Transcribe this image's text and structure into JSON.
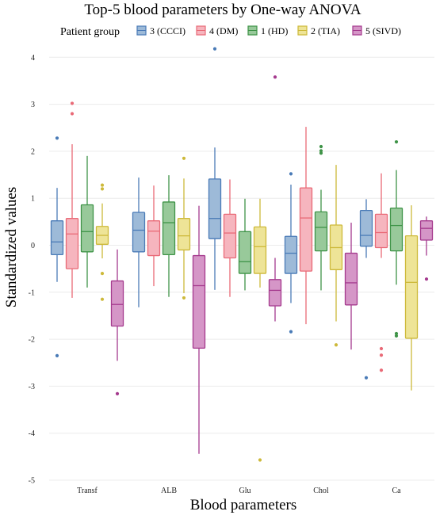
{
  "chart_data": {
    "type": "box",
    "title": "Top-5 blood parameters by One-way ANOVA",
    "xlabel": "Blood parameters",
    "ylabel": "Standardized values",
    "ylim": [
      -5,
      4.5
    ],
    "yticks": [
      -5,
      -4,
      -3,
      -2,
      -1,
      0,
      1,
      2,
      3,
      4
    ],
    "grid": true,
    "legend": {
      "title": "Patient group",
      "placement": "top"
    },
    "categories": [
      "Transf",
      "ALB",
      "Glu",
      "Chol",
      "Ca"
    ],
    "series": [
      {
        "name": "3 (CCCI)",
        "color": "#4a7bb7",
        "fill": "#9dbad8",
        "boxes": [
          {
            "lower": -0.78,
            "q1": -0.2,
            "median": 0.07,
            "q3": 0.52,
            "upper": 1.22,
            "outliers": [
              2.28,
              -2.35
            ]
          },
          {
            "lower": -1.32,
            "q1": -0.14,
            "median": 0.32,
            "q3": 0.7,
            "upper": 1.44,
            "outliers": []
          },
          {
            "lower": -0.95,
            "q1": 0.14,
            "median": 0.57,
            "q3": 1.41,
            "upper": 2.08,
            "outliers": [
              4.18
            ]
          },
          {
            "lower": -1.23,
            "q1": -0.6,
            "median": -0.17,
            "q3": 0.19,
            "upper": 1.29,
            "outliers": [
              1.52,
              -1.84
            ]
          },
          {
            "lower": -0.27,
            "q1": -0.02,
            "median": 0.21,
            "q3": 0.74,
            "upper": 0.98,
            "outliers": [
              -2.82
            ]
          }
        ]
      },
      {
        "name": "4 (DM)",
        "color": "#e96a77",
        "fill": "#f6b5be",
        "boxes": [
          {
            "lower": -1.12,
            "q1": -0.5,
            "median": 0.24,
            "q3": 0.57,
            "upper": 2.15,
            "outliers": [
              3.02,
              2.8
            ]
          },
          {
            "lower": -0.87,
            "q1": -0.22,
            "median": 0.3,
            "q3": 0.52,
            "upper": 1.27,
            "outliers": []
          },
          {
            "lower": -1.1,
            "q1": -0.27,
            "median": 0.26,
            "q3": 0.66,
            "upper": 1.4,
            "outliers": []
          },
          {
            "lower": -1.68,
            "q1": -0.55,
            "median": 0.58,
            "q3": 1.22,
            "upper": 2.52,
            "outliers": []
          },
          {
            "lower": -0.27,
            "q1": -0.05,
            "median": 0.27,
            "q3": 0.66,
            "upper": 1.53,
            "outliers": [
              -2.2,
              -2.34,
              -2.66
            ]
          }
        ]
      },
      {
        "name": "1 (HD)",
        "color": "#3e9347",
        "fill": "#98c99a",
        "boxes": [
          {
            "lower": -0.9,
            "q1": -0.14,
            "median": 0.29,
            "q3": 0.86,
            "upper": 1.9,
            "outliers": []
          },
          {
            "lower": -1.1,
            "q1": -0.2,
            "median": 0.48,
            "q3": 0.92,
            "upper": 1.49,
            "outliers": []
          },
          {
            "lower": -0.96,
            "q1": -0.6,
            "median": -0.35,
            "q3": 0.29,
            "upper": 0.99,
            "outliers": []
          },
          {
            "lower": -0.96,
            "q1": -0.12,
            "median": 0.38,
            "q3": 0.71,
            "upper": 1.18,
            "outliers": [
              2.1,
              2.01,
              1.96
            ]
          },
          {
            "lower": -0.84,
            "q1": -0.12,
            "median": 0.42,
            "q3": 0.79,
            "upper": 1.6,
            "outliers": [
              2.2,
              -1.88,
              -1.93
            ]
          }
        ]
      },
      {
        "name": "2 (TIA)",
        "color": "#cdb93a",
        "fill": "#eee497",
        "boxes": [
          {
            "lower": -0.28,
            "q1": 0.02,
            "median": 0.21,
            "q3": 0.4,
            "upper": 0.89,
            "outliers": [
              1.28,
              1.2,
              -0.6,
              -1.15
            ]
          },
          {
            "lower": -1.02,
            "q1": -0.1,
            "median": 0.2,
            "q3": 0.57,
            "upper": 1.42,
            "outliers": [
              1.85,
              -1.12
            ]
          },
          {
            "lower": -0.9,
            "q1": -0.6,
            "median": -0.03,
            "q3": 0.39,
            "upper": 0.99,
            "outliers": [
              -4.57
            ]
          },
          {
            "lower": -1.62,
            "q1": -0.52,
            "median": -0.05,
            "q3": 0.43,
            "upper": 1.71,
            "outliers": [
              -2.12
            ]
          },
          {
            "lower": -3.09,
            "q1": -1.98,
            "median": -0.79,
            "q3": 0.2,
            "upper": 0.85,
            "outliers": []
          }
        ]
      },
      {
        "name": "5 (SIVD)",
        "color": "#a53a8e",
        "fill": "#d596c7",
        "boxes": [
          {
            "lower": -2.46,
            "q1": -1.72,
            "median": -1.26,
            "q3": -0.76,
            "upper": -0.09,
            "outliers": [
              -3.16
            ]
          },
          {
            "lower": -4.44,
            "q1": -2.19,
            "median": -0.86,
            "q3": -0.22,
            "upper": 0.84,
            "outliers": []
          },
          {
            "lower": -1.62,
            "q1": -1.29,
            "median": -0.96,
            "q3": -0.73,
            "upper": -0.27,
            "outliers": [
              3.58
            ]
          },
          {
            "lower": -2.22,
            "q1": -1.27,
            "median": -0.8,
            "q3": -0.17,
            "upper": 0.48,
            "outliers": []
          },
          {
            "lower": -0.22,
            "q1": 0.11,
            "median": 0.36,
            "q3": 0.52,
            "upper": 0.61,
            "outliers": [
              -0.72
            ]
          }
        ]
      }
    ]
  }
}
